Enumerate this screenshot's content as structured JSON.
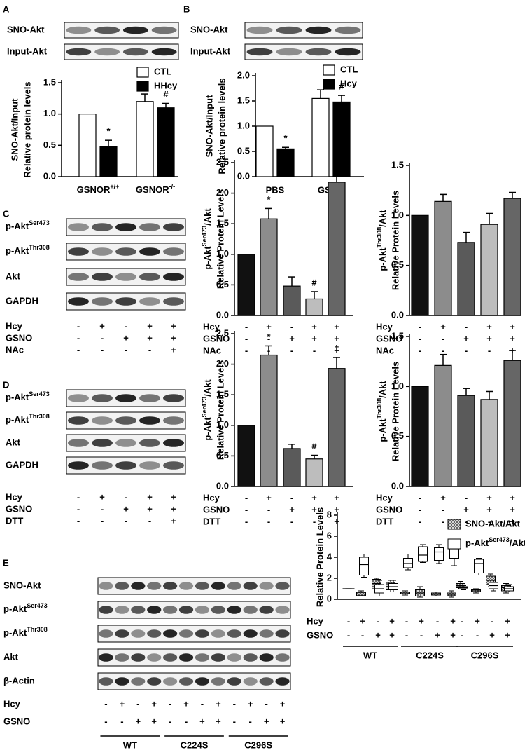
{
  "panels": [
    {
      "label": "A",
      "blot_rows": [
        "SNO-Akt",
        "Input-Akt"
      ]
    },
    {
      "label": "B",
      "blot_rows": [
        "SNO-Akt",
        "Input-Akt"
      ]
    },
    {
      "label": "C",
      "blot_rows": [
        [
          {
            "text": "p-Akt"
          },
          {
            "text": "Ser473",
            "sup": true
          }
        ],
        [
          {
            "text": "p-Akt"
          },
          {
            "text": "Thr308",
            "sup": true
          }
        ],
        "Akt",
        "GAPDH"
      ],
      "conditions": {
        "names": [
          "Hcy",
          "GSNO",
          "NAc"
        ],
        "signs": [
          [
            "-",
            "+",
            "-",
            "+",
            "+"
          ],
          [
            "-",
            "-",
            "+",
            "+",
            "+"
          ],
          [
            "-",
            "-",
            "-",
            "-",
            "+"
          ]
        ]
      }
    },
    {
      "label": "D",
      "blot_rows": [
        [
          {
            "text": "p-Akt"
          },
          {
            "text": "Ser473",
            "sup": true
          }
        ],
        [
          {
            "text": "p-Akt"
          },
          {
            "text": "Thr308",
            "sup": true
          }
        ],
        "Akt",
        "GAPDH"
      ],
      "conditions": {
        "names": [
          "Hcy",
          "GSNO",
          "DTT"
        ],
        "signs": [
          [
            "-",
            "+",
            "-",
            "+",
            "+"
          ],
          [
            "-",
            "-",
            "+",
            "+",
            "+"
          ],
          [
            "-",
            "-",
            "-",
            "-",
            "+"
          ]
        ]
      }
    },
    {
      "label": "E",
      "blot_rows": [
        "SNO-Akt",
        [
          {
            "text": "p-Akt"
          },
          {
            "text": "Ser473",
            "sup": true
          }
        ],
        [
          {
            "text": "p-Akt"
          },
          {
            "text": "Thr308",
            "sup": true
          }
        ],
        "Akt",
        "β-Actin"
      ],
      "conditions": {
        "names": [
          "Hcy",
          "GSNO"
        ],
        "signs": [
          [
            "-",
            "+",
            "-",
            "+",
            "-",
            "+",
            "-",
            "+",
            "-",
            "+",
            "-",
            "+"
          ],
          [
            "-",
            "-",
            "+",
            "+",
            "-",
            "-",
            "+",
            "+",
            "-",
            "-",
            "+",
            "+"
          ]
        ]
      },
      "groups": [
        "WT",
        "C224S",
        "C296S"
      ]
    }
  ],
  "chart_data": [
    {
      "type": "bar",
      "ylabel": [
        "SNO-Akt/Input",
        "Relative protein levels"
      ],
      "categories": [
        [
          {
            "text": "GSNOR"
          },
          {
            "text": "+/+",
            "sup": true
          }
        ],
        [
          {
            "text": "GSNOR"
          },
          {
            "text": "-/-",
            "sup": true
          }
        ]
      ],
      "series": [
        {
          "name": "CTL",
          "color": "#ffffff",
          "values": [
            1.0,
            1.2
          ],
          "errors": [
            null,
            0.12
          ],
          "annotations": [
            null,
            null
          ]
        },
        {
          "name": "HHcy",
          "color": "#000000",
          "values": [
            0.48,
            1.1
          ],
          "errors": [
            0.1,
            0.07
          ],
          "annotations": [
            "*",
            "#"
          ]
        }
      ],
      "ylim": [
        0,
        1.5
      ],
      "yticks": [
        {
          "value": 0,
          "label": "0.0"
        },
        0.5,
        {
          "value": 1,
          "label": "1.0"
        },
        1.5
      ]
    },
    {
      "type": "bar",
      "ylabel": [
        "SNO-Akt/Input",
        "Relative protein levels"
      ],
      "categories": [
        "PBS",
        "GSNO"
      ],
      "series": [
        {
          "name": "CTL",
          "color": "#ffffff",
          "values": [
            1.0,
            1.55
          ],
          "errors": [
            null,
            0.17
          ],
          "annotations": [
            null,
            null
          ]
        },
        {
          "name": "Hcy",
          "color": "#000000",
          "values": [
            0.55,
            1.48
          ],
          "errors": [
            0.03,
            0.13
          ],
          "annotations": [
            "*",
            "#"
          ]
        }
      ],
      "ylim": [
        0,
        2
      ],
      "yticks": [
        {
          "value": 0,
          "label": "0.0"
        },
        0.5,
        {
          "value": 1,
          "label": "1.0"
        },
        1.5,
        {
          "value": 2,
          "label": "2.0"
        }
      ]
    },
    {
      "type": "bar",
      "ylabel": [
        [
          {
            "text": "p-Akt"
          },
          {
            "text": "Ser473",
            "sup": true
          },
          {
            "text": "/Akt"
          }
        ],
        "Relative Protein Levels"
      ],
      "values": [
        1.0,
        1.58,
        0.48,
        0.27,
        2.18
      ],
      "errors": [
        null,
        0.17,
        0.15,
        0.12,
        0.17
      ],
      "colors": [
        "#111111",
        "#8c8c8c",
        "#5a5a5a",
        "#bdbdbd",
        "#666666"
      ],
      "annotations": [
        null,
        "*",
        null,
        "#",
        "†"
      ],
      "ylim": [
        0,
        2.5
      ],
      "yticks": [
        {
          "value": 0,
          "label": "0.0"
        },
        0.5,
        {
          "value": 1,
          "label": "1.0"
        },
        1.5,
        {
          "value": 2,
          "label": "2.0"
        },
        2.5
      ]
    },
    {
      "type": "bar",
      "ylabel": [
        [
          {
            "text": "p-Akt"
          },
          {
            "text": "Thr308",
            "sup": true
          },
          {
            "text": "/Akt"
          }
        ],
        "Relative Protein Levels"
      ],
      "values": [
        1.0,
        1.14,
        0.73,
        0.91,
        1.17
      ],
      "errors": [
        null,
        0.07,
        0.1,
        0.11,
        0.06
      ],
      "colors": [
        "#111111",
        "#8c8c8c",
        "#5a5a5a",
        "#bdbdbd",
        "#666666"
      ],
      "ylim": [
        0,
        1.5
      ],
      "yticks": [
        {
          "value": 0,
          "label": "0.0"
        },
        0.5,
        {
          "value": 1,
          "label": "1.0"
        },
        1.5
      ]
    },
    {
      "type": "bar",
      "ylabel": [
        [
          {
            "text": "p-Akt"
          },
          {
            "text": "Ser473",
            "sup": true
          },
          {
            "text": "/Akt"
          }
        ],
        "Relative Protein Levels"
      ],
      "values": [
        1.0,
        2.15,
        0.62,
        0.45,
        1.93
      ],
      "errors": [
        null,
        0.15,
        0.07,
        0.06,
        0.18
      ],
      "colors": [
        "#111111",
        "#8c8c8c",
        "#5a5a5a",
        "#bdbdbd",
        "#666666"
      ],
      "annotations": [
        null,
        "*",
        null,
        "#",
        "†"
      ],
      "ylim": [
        0,
        2.5
      ],
      "yticks": [
        {
          "value": 0,
          "label": "0.0"
        },
        0.5,
        {
          "value": 1,
          "label": "1.0"
        },
        1.5,
        {
          "value": 2,
          "label": "2.0"
        },
        2.5
      ]
    },
    {
      "type": "bar",
      "ylabel": [
        [
          {
            "text": "p-Akt"
          },
          {
            "text": "Thr308",
            "sup": true
          },
          {
            "text": "/Akt"
          }
        ],
        "Relative Protein Levels"
      ],
      "values": [
        1.0,
        1.21,
        0.91,
        0.87,
        1.26
      ],
      "errors": [
        null,
        0.11,
        0.07,
        0.08,
        0.1
      ],
      "colors": [
        "#111111",
        "#8c8c8c",
        "#5a5a5a",
        "#bdbdbd",
        "#666666"
      ],
      "ylim": [
        0,
        1.5
      ],
      "yticks": [
        {
          "value": 0,
          "label": "0.0"
        },
        0.5,
        {
          "value": 1,
          "label": "1.0"
        },
        1.5
      ]
    },
    {
      "type": "box",
      "ylabel": [
        "Relative Protein Levels"
      ],
      "series": [
        {
          "name": "SNO-Akt/Akt",
          "color": "#a0a0a0",
          "pattern": true,
          "values": [
            [
              1,
              1,
              1,
              1,
              1
            ],
            [
              0.3,
              0.35,
              0.5,
              0.65,
              0.8
            ],
            [
              0.6,
              1.0,
              1.5,
              1.9,
              2.0
            ],
            [
              0.7,
              0.9,
              1.2,
              1.6,
              1.8
            ],
            [
              0.4,
              0.5,
              0.6,
              0.7,
              0.8
            ],
            [
              0.2,
              0.3,
              0.6,
              0.9,
              1.2
            ],
            [
              0.3,
              0.4,
              0.5,
              0.6,
              0.7
            ],
            [
              0.2,
              0.3,
              0.4,
              0.6,
              0.8
            ],
            [
              1.0,
              1.1,
              1.3,
              1.5,
              1.7
            ],
            [
              0.6,
              0.7,
              0.8,
              0.9,
              1.0
            ],
            [
              1.2,
              1.4,
              1.8,
              2.2,
              2.4
            ],
            [
              0.6,
              0.8,
              1.1,
              1.3,
              1.5
            ]
          ]
        },
        {
          "name": [
            {
              "text": "p-Akt"
            },
            {
              "text": "Ser473",
              "sup": true
            },
            {
              "text": "/Akt"
            }
          ],
          "color": "#ffffff",
          "values": [
            [
              1,
              1,
              1,
              1,
              1
            ],
            [
              2.1,
              2.3,
              3.3,
              4.0,
              4.3
            ],
            [
              0.3,
              0.6,
              1.0,
              1.4,
              1.8
            ],
            [
              0.7,
              0.9,
              1.2,
              1.5,
              1.8
            ],
            [
              2.8,
              3.0,
              3.4,
              3.9,
              4.3
            ],
            [
              3.5,
              3.6,
              4.2,
              5.0,
              5.2
            ],
            [
              3.4,
              3.7,
              4.5,
              4.9,
              5.2
            ],
            [
              3.2,
              3.9,
              4.8,
              5.6,
              5.7
            ],
            [
              0.9,
              1.0,
              1.1,
              1.2,
              1.3
            ],
            [
              2.3,
              2.5,
              3.4,
              3.8,
              3.9
            ],
            [
              0.8,
              1.0,
              1.3,
              1.6,
              1.8
            ],
            [
              0.7,
              0.8,
              1.0,
              1.2,
              1.4
            ]
          ]
        }
      ],
      "ylim": [
        0,
        8
      ],
      "yticks": [
        0,
        2,
        4,
        6,
        8
      ]
    }
  ]
}
